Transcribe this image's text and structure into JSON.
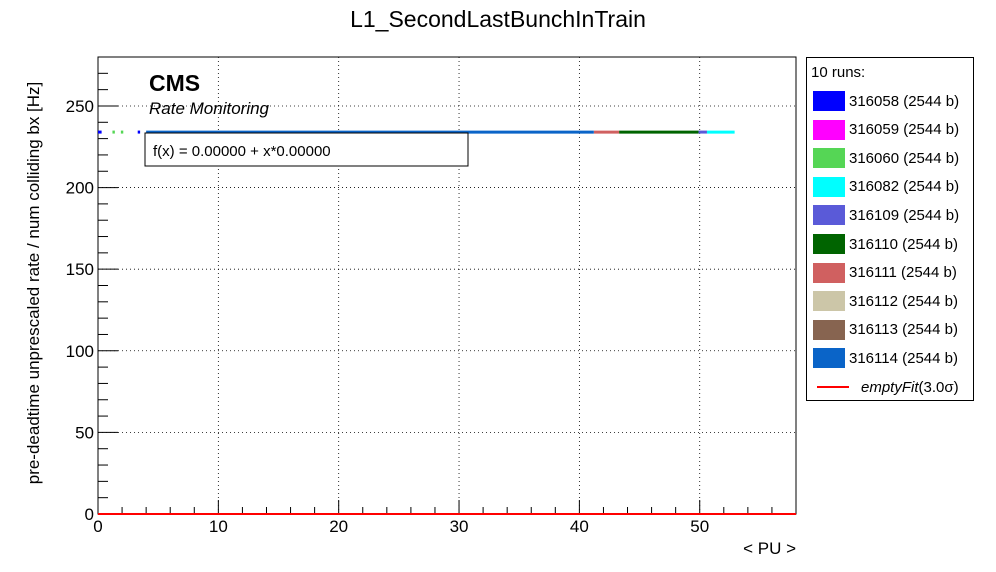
{
  "chart_data": {
    "type": "scatter",
    "title": "L1_SecondLastBunchInTrain",
    "xlabel": "< PU >",
    "ylabel": "pre-deadtime unprescaled rate / num colliding bx [Hz]",
    "xlim": [
      0,
      58
    ],
    "ylim": [
      0,
      280
    ],
    "x_ticks": [
      0,
      10,
      20,
      30,
      40,
      50
    ],
    "y_ticks": [
      0,
      50,
      100,
      150,
      200,
      250
    ],
    "x_tick_labels": [
      "0",
      "10",
      "20",
      "30",
      "40",
      "50"
    ],
    "y_tick_labels": [
      "0",
      "50",
      "100",
      "150",
      "200",
      "250"
    ],
    "grid": true,
    "legend_header": "10 runs:",
    "series": [
      {
        "name": "316058 (2544 b)",
        "color": "#0000ff",
        "y": 234,
        "x_ranges": [
          [
            0.0,
            0.3
          ],
          [
            3.3,
            3.5
          ]
        ]
      },
      {
        "name": "316059 (2544 b)",
        "color": "#ff00ff",
        "y": 234,
        "x_ranges": []
      },
      {
        "name": "316060 (2544 b)",
        "color": "#55d655",
        "y": 234,
        "x_ranges": [
          [
            1.2,
            1.4
          ],
          [
            1.9,
            2.1
          ]
        ]
      },
      {
        "name": "316082 (2544 b)",
        "color": "#00ffff",
        "y": 234,
        "x_ranges": [
          [
            50.6,
            52.9
          ]
        ]
      },
      {
        "name": "316109 (2544 b)",
        "color": "#5a5ad8",
        "y": 234,
        "x_ranges": [
          [
            49.9,
            50.6
          ]
        ]
      },
      {
        "name": "316110 (2544 b)",
        "color": "#006400",
        "y": 234,
        "x_ranges": [
          [
            43.3,
            49.9
          ]
        ]
      },
      {
        "name": "316111 (2544 b)",
        "color": "#d06060",
        "y": 234,
        "x_ranges": [
          [
            41.2,
            43.3
          ]
        ]
      },
      {
        "name": "316112 (2544 b)",
        "color": "#ccc6a8",
        "y": 234,
        "x_ranges": []
      },
      {
        "name": "316113 (2544 b)",
        "color": "#876450",
        "y": 234,
        "x_ranges": []
      },
      {
        "name": "316114 (2544 b)",
        "color": "#0a64c8",
        "y": 234,
        "x_ranges": [
          [
            4.0,
            41.2
          ]
        ]
      }
    ],
    "fit": {
      "name": "emptyFit",
      "label_suffix": "(3.0σ)",
      "color": "#ff0000",
      "intercept": 0.0,
      "slope": 0.0,
      "formula_text": "f(x) = 0.00000 + x*0.00000"
    },
    "annotations": {
      "experiment": "CMS",
      "subtitle": "Rate Monitoring"
    }
  }
}
